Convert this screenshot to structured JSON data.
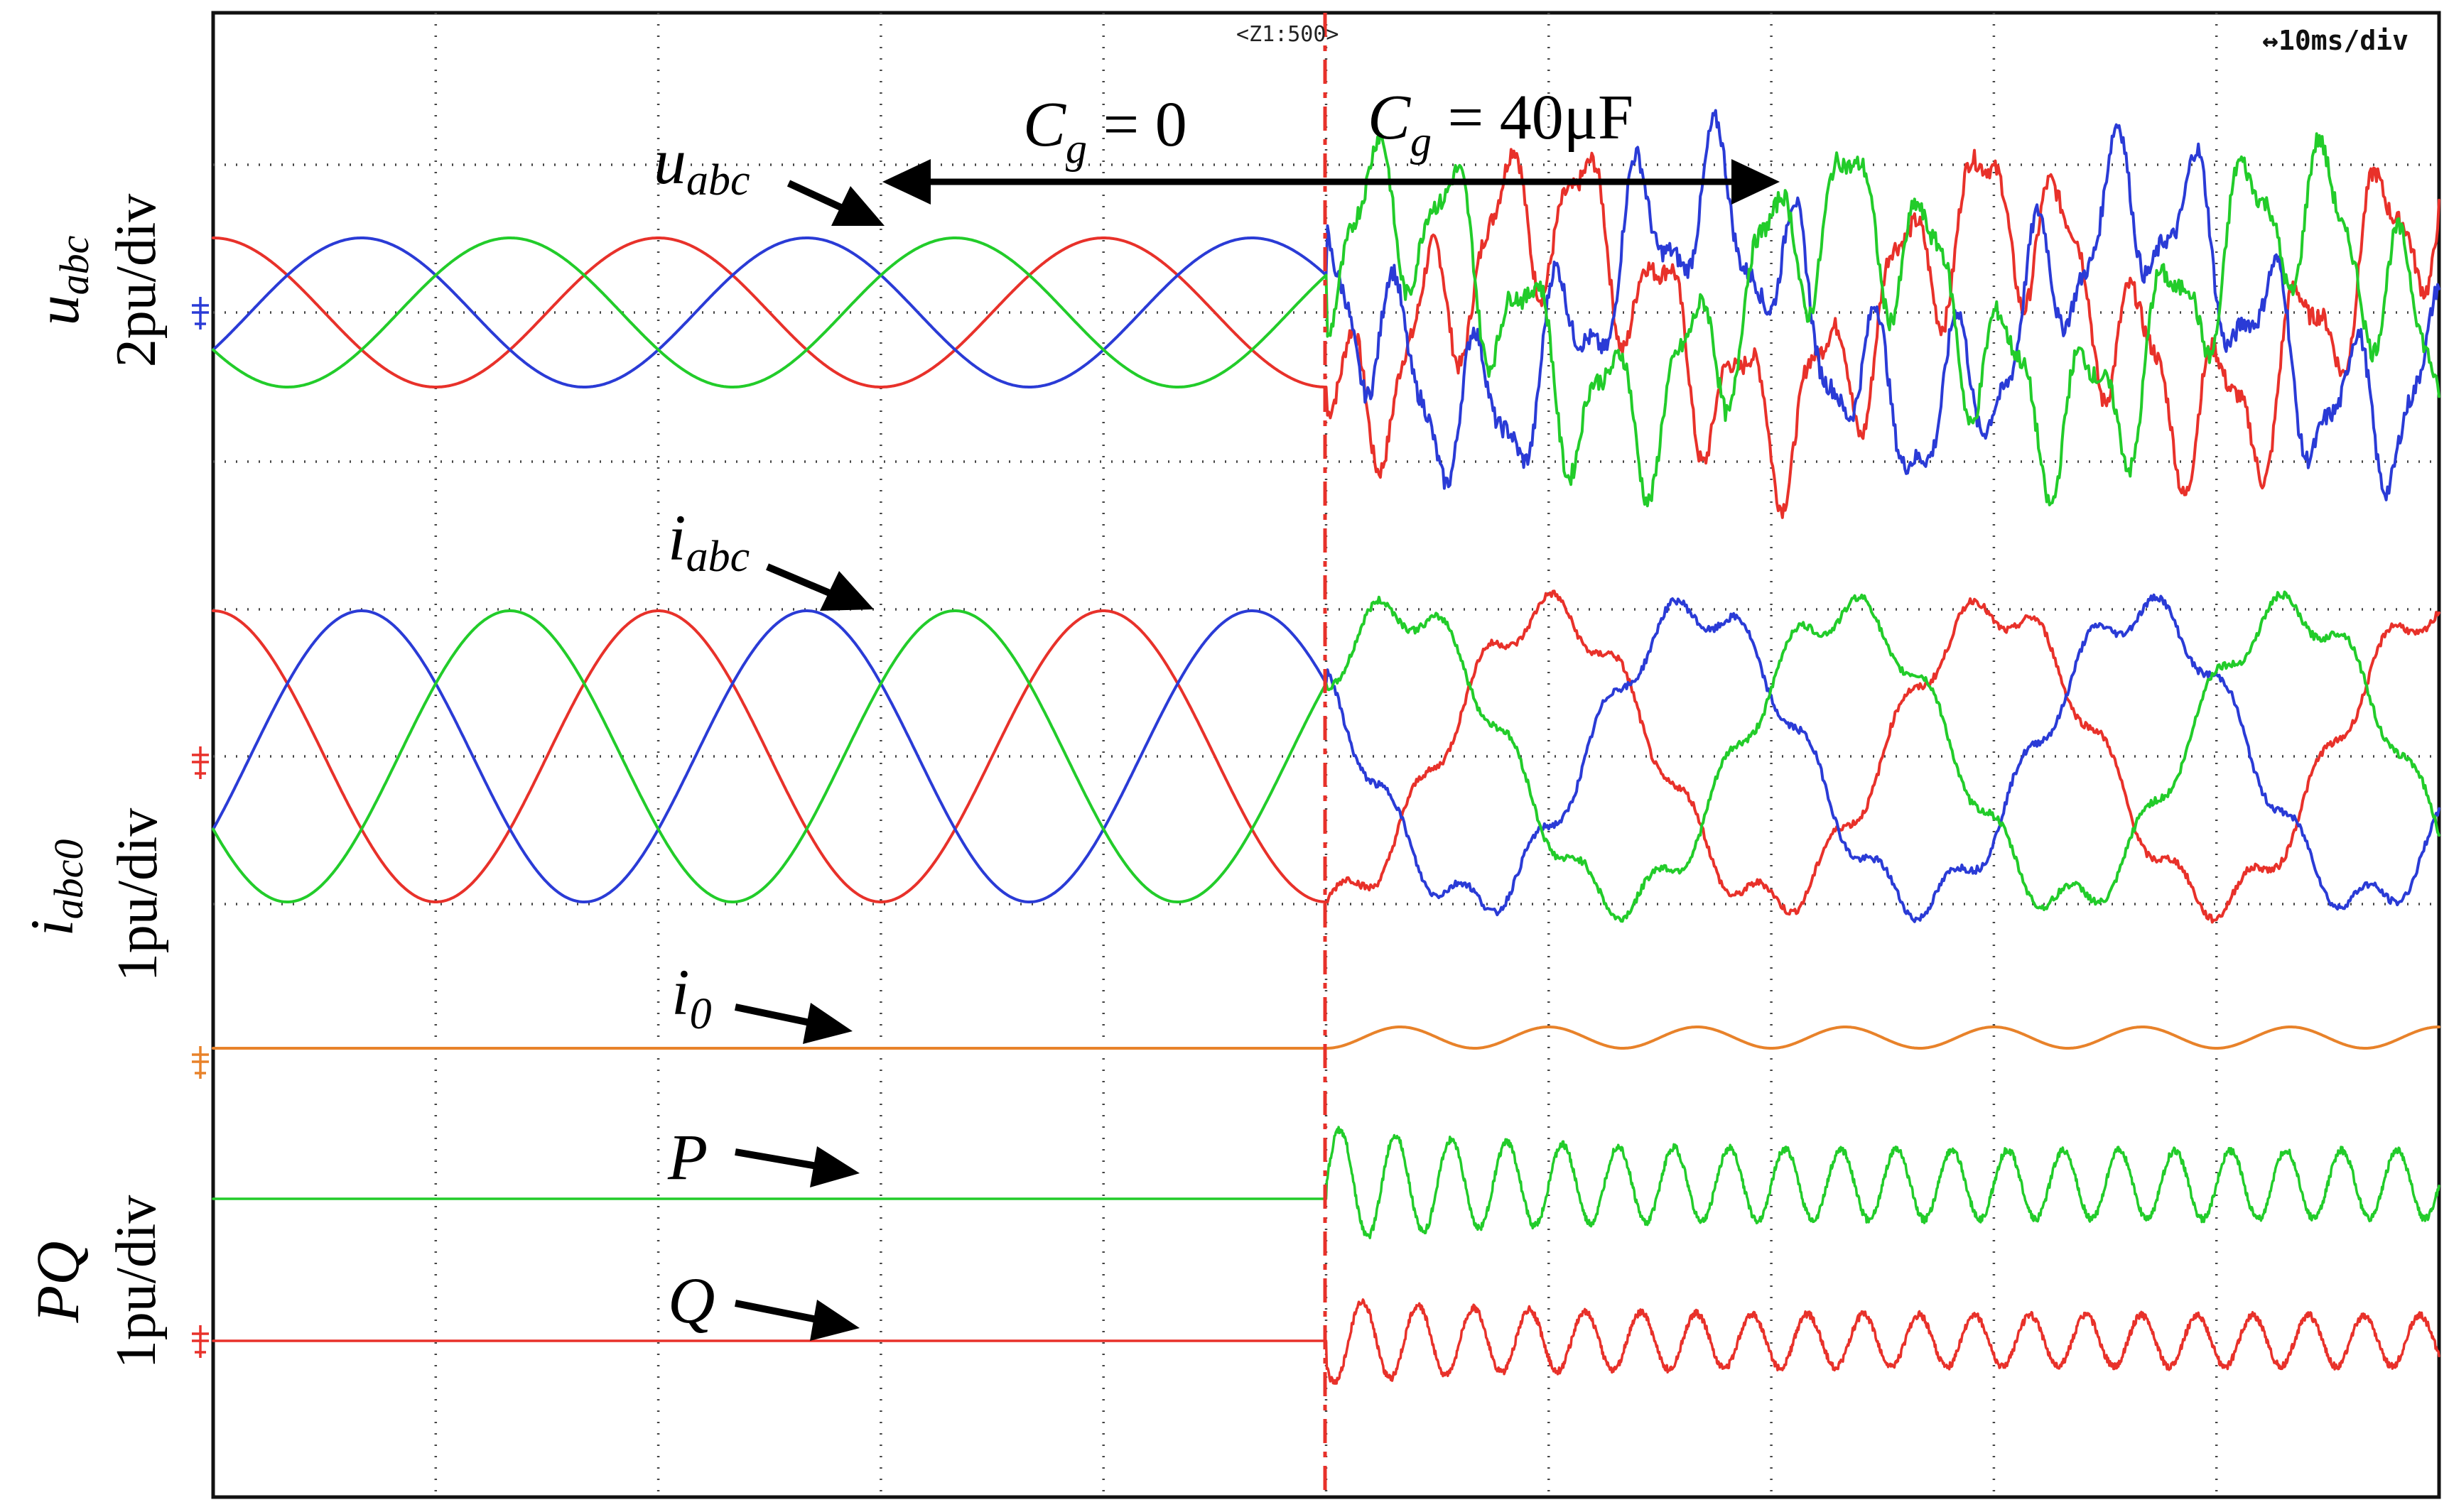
{
  "header": {
    "zoom": "<Z1:500>",
    "timebase": "↔10ms/div"
  },
  "annotations": {
    "cg_before_main": "C",
    "cg_before_sub": "g",
    "cg_before_rest": " = 0",
    "cg_after_main": "C",
    "cg_after_sub": "g",
    "cg_after_rest": " = 40μF",
    "u_main": "u",
    "u_sub": "abc",
    "i_main": "i",
    "i_sub": "abc",
    "i0_main": "i",
    "i0_sub": "0",
    "p_label": "P",
    "q_label": "Q"
  },
  "axis_labels": {
    "u_name_main": "u",
    "u_name_sub": "abc",
    "u_scale": "2pu/div",
    "i_name_main": "i",
    "i_name_sub": "abc0",
    "i_scale": "1pu/div",
    "pq_name": "PQ",
    "pq_scale": "1pu/div"
  },
  "colors": {
    "phase_a": "#e8312a",
    "phase_b": "#2a3bd6",
    "phase_c": "#22cc2a",
    "i0": "#e8822a",
    "p": "#22cc2a",
    "q": "#e8312a",
    "event_marker": "#e8312a",
    "grid": "#444444",
    "frame": "#111111"
  },
  "chart_data": {
    "type": "line",
    "xlabel": "",
    "x_unit": "ms",
    "time_per_div_ms": 10,
    "x_divisions": 10,
    "xlim_ms": [
      0,
      100
    ],
    "event_time_ms": 50,
    "fundamental_frequency_hz": 50,
    "channels": [
      {
        "name": "u_abc",
        "scale": "2pu/div",
        "series": [
          {
            "phase": "a",
            "before_event": {
              "amplitude_pu": 1.0,
              "phase_deg": 0
            }
          },
          {
            "phase": "b",
            "before_event": {
              "amplitude_pu": 1.0,
              "phase_deg": -120
            }
          },
          {
            "phase": "c",
            "before_event": {
              "amplitude_pu": 1.0,
              "phase_deg": 120
            }
          }
        ],
        "after_event": "distorted oscillation"
      },
      {
        "name": "i_abc",
        "scale": "1pu/div",
        "series": [
          {
            "phase": "a",
            "before_event": {
              "amplitude_pu": 1.0,
              "phase_deg": 0
            }
          },
          {
            "phase": "b",
            "before_event": {
              "amplitude_pu": 1.0,
              "phase_deg": -120
            }
          },
          {
            "phase": "c",
            "before_event": {
              "amplitude_pu": 1.0,
              "phase_deg": 120
            }
          }
        ],
        "after_event": "distorted oscillation"
      },
      {
        "name": "i_0",
        "scale": "1pu/div",
        "before_event_pu": 0.0,
        "after_event_ripple_amplitude_pu": 0.1
      },
      {
        "name": "P",
        "scale": "1pu/div",
        "before_event_pu": 1.0,
        "after_event_mean_pu": 1.1,
        "after_event_peak_to_peak_pu": 0.8
      },
      {
        "name": "Q",
        "scale": "1pu/div",
        "before_event_pu": 0.0,
        "after_event_mean_pu": 0.0,
        "after_event_peak_to_peak_pu": 0.6
      }
    ]
  }
}
